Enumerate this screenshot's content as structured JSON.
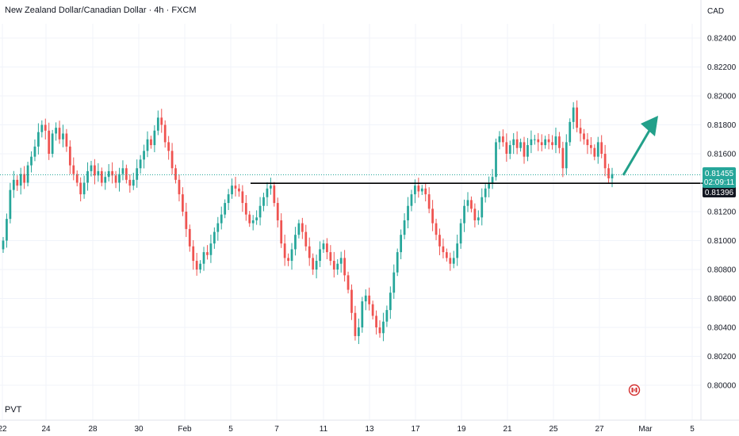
{
  "header": {
    "title": "New Zealand Dollar/Canadian Dollar · 4h · FXCM",
    "currency": "CAD"
  },
  "footer": {
    "indicator_label": "PVT"
  },
  "colors": {
    "up": "#26a69a",
    "down": "#ef5350",
    "grid": "#f0f3fa",
    "axis_text": "#131722",
    "current_price_line": "#26a69a",
    "level_line": "#000000",
    "arrow": "#22a08a",
    "event_icon": "#d32f2f"
  },
  "chart_data": {
    "type": "candlestick",
    "title": "New Zealand Dollar/Canadian Dollar · 4h · FXCM",
    "ylabel": "CAD",
    "ylim": [
      0.8,
      0.825
    ],
    "y_ticks": [
      "0.80000",
      "0.80200",
      "0.80400",
      "0.80600",
      "0.80800",
      "0.81000",
      "0.81200",
      "0.81400",
      "0.81600",
      "0.81800",
      "0.82000",
      "0.82200",
      "0.82400"
    ],
    "x_ticks": [
      "22",
      "24",
      "28",
      "30",
      "Feb",
      "5",
      "7",
      "11",
      "13",
      "17",
      "19",
      "21",
      "25",
      "27",
      "Mar",
      "5"
    ],
    "grid": true,
    "current_price": {
      "value": 0.81455,
      "label": "0.81455",
      "countdown": "02:09:11"
    },
    "horizontal_level": {
      "value": 0.81396,
      "label": "0.81396"
    },
    "annotation": "upward arrow from the current price",
    "closes": [
      0.81,
      0.8115,
      0.8135,
      0.8142,
      0.8138,
      0.8146,
      0.814,
      0.8152,
      0.8158,
      0.8165,
      0.8175,
      0.818,
      0.8176,
      0.816,
      0.8174,
      0.8178,
      0.817,
      0.8174,
      0.8165,
      0.8152,
      0.8146,
      0.814,
      0.8132,
      0.814,
      0.8148,
      0.8152,
      0.8145,
      0.8148,
      0.814,
      0.8144,
      0.8148,
      0.8145,
      0.814,
      0.8146,
      0.815,
      0.8142,
      0.8138,
      0.8142,
      0.815,
      0.8156,
      0.8162,
      0.817,
      0.8166,
      0.8176,
      0.8185,
      0.818,
      0.8168,
      0.8162,
      0.815,
      0.8142,
      0.8132,
      0.812,
      0.8108,
      0.8096,
      0.8086,
      0.808,
      0.8084,
      0.8092,
      0.809,
      0.8098,
      0.8106,
      0.8112,
      0.8118,
      0.8126,
      0.8132,
      0.8138,
      0.8136,
      0.8134,
      0.8126,
      0.8118,
      0.8112,
      0.8114,
      0.8116,
      0.8124,
      0.813,
      0.8136,
      0.8138,
      0.8126,
      0.8114,
      0.8098,
      0.8088,
      0.8086,
      0.8094,
      0.8104,
      0.8112,
      0.8106,
      0.8096,
      0.8088,
      0.808,
      0.8086,
      0.8094,
      0.8098,
      0.8092,
      0.8086,
      0.808,
      0.8084,
      0.8088,
      0.8076,
      0.8066,
      0.805,
      0.8034,
      0.804,
      0.8058,
      0.8062,
      0.8056,
      0.8048,
      0.804,
      0.8036,
      0.8044,
      0.8052,
      0.8064,
      0.8078,
      0.8092,
      0.8104,
      0.8114,
      0.8124,
      0.8132,
      0.8138,
      0.8134,
      0.8136,
      0.8132,
      0.8122,
      0.8112,
      0.8104,
      0.8096,
      0.8092,
      0.8088,
      0.8084,
      0.8088,
      0.8098,
      0.8112,
      0.8124,
      0.8128,
      0.8122,
      0.8114,
      0.8116,
      0.813,
      0.8136,
      0.814,
      0.8144,
      0.8168,
      0.8172,
      0.8168,
      0.816,
      0.8166,
      0.817,
      0.8164,
      0.8168,
      0.8158,
      0.8166,
      0.817,
      0.817,
      0.8168,
      0.8166,
      0.817,
      0.8168,
      0.8166,
      0.8172,
      0.8164,
      0.815,
      0.8168,
      0.8182,
      0.8192,
      0.8178,
      0.8174,
      0.817,
      0.8166,
      0.8164,
      0.8158,
      0.8168,
      0.816,
      0.815,
      0.8143,
      0.8146
    ]
  }
}
